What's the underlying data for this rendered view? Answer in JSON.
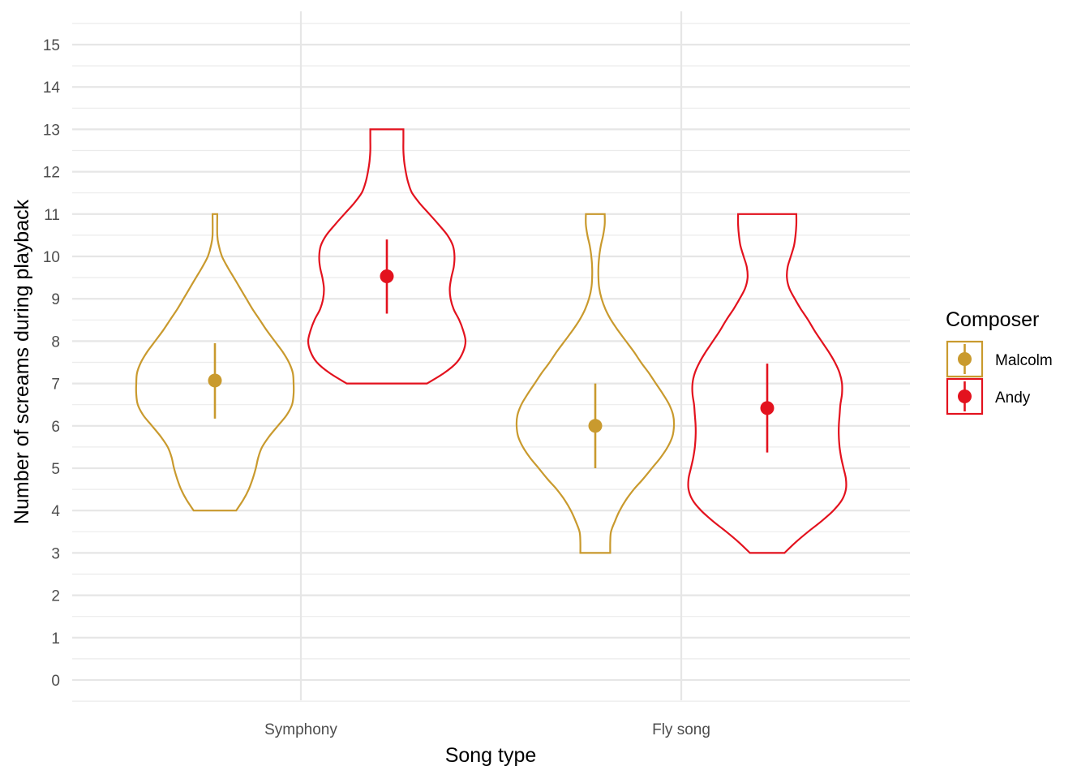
{
  "chart_data": {
    "type": "violin",
    "xlabel": "Song type",
    "ylabel": "Number of screams during playback",
    "categories": [
      "Symphony",
      "Fly song"
    ],
    "ylim": [
      -0.5,
      15.5
    ],
    "yticks": [
      0,
      1,
      2,
      3,
      4,
      5,
      6,
      7,
      8,
      9,
      10,
      11,
      12,
      13,
      14,
      15
    ],
    "grid": true,
    "legend": {
      "title": "Composer",
      "position": "right"
    },
    "series": [
      {
        "name": "Malcolm",
        "color": "#C99A2E",
        "groups": [
          {
            "category": "Symphony",
            "min": 4,
            "max": 11,
            "mean": 7.07,
            "ci_low": 6.17,
            "ci_high": 7.95,
            "density": [
              [
                4,
                0.27
              ],
              [
                4.25,
                0.36
              ],
              [
                4.5,
                0.43
              ],
              [
                4.75,
                0.48
              ],
              [
                5,
                0.52
              ],
              [
                5.25,
                0.55
              ],
              [
                5.5,
                0.6
              ],
              [
                5.75,
                0.69
              ],
              [
                6,
                0.8
              ],
              [
                6.25,
                0.91
              ],
              [
                6.5,
                0.98
              ],
              [
                6.75,
                1.0
              ],
              [
                7,
                1.0
              ],
              [
                7.25,
                0.99
              ],
              [
                7.5,
                0.94
              ],
              [
                7.75,
                0.86
              ],
              [
                8,
                0.76
              ],
              [
                8.25,
                0.66
              ],
              [
                8.5,
                0.57
              ],
              [
                8.75,
                0.48
              ],
              [
                9,
                0.4
              ],
              [
                9.25,
                0.32
              ],
              [
                9.5,
                0.24
              ],
              [
                9.75,
                0.16
              ],
              [
                10,
                0.09
              ],
              [
                10.25,
                0.05
              ],
              [
                10.5,
                0.03
              ],
              [
                11,
                0.03
              ]
            ]
          },
          {
            "category": "Fly song",
            "min": 3,
            "max": 11,
            "mean": 6.0,
            "ci_low": 5.0,
            "ci_high": 7.0,
            "density": [
              [
                3,
                0.19
              ],
              [
                3.25,
                0.19
              ],
              [
                3.5,
                0.2
              ],
              [
                3.75,
                0.25
              ],
              [
                4,
                0.31
              ],
              [
                4.25,
                0.39
              ],
              [
                4.5,
                0.49
              ],
              [
                4.75,
                0.61
              ],
              [
                5,
                0.72
              ],
              [
                5.25,
                0.83
              ],
              [
                5.5,
                0.92
              ],
              [
                5.75,
                0.98
              ],
              [
                6,
                1.0
              ],
              [
                6.25,
                0.99
              ],
              [
                6.5,
                0.94
              ],
              [
                6.75,
                0.86
              ],
              [
                7,
                0.77
              ],
              [
                7.25,
                0.68
              ],
              [
                7.5,
                0.58
              ],
              [
                7.75,
                0.49
              ],
              [
                8,
                0.39
              ],
              [
                8.25,
                0.29
              ],
              [
                8.5,
                0.2
              ],
              [
                8.75,
                0.13
              ],
              [
                9,
                0.08
              ],
              [
                9.25,
                0.05
              ],
              [
                9.5,
                0.04
              ],
              [
                9.75,
                0.04
              ],
              [
                10,
                0.05
              ],
              [
                10.25,
                0.07
              ],
              [
                10.5,
                0.1
              ],
              [
                10.75,
                0.12
              ],
              [
                11,
                0.12
              ]
            ]
          }
        ]
      },
      {
        "name": "Andy",
        "color": "#E3121E",
        "groups": [
          {
            "category": "Symphony",
            "min": 7,
            "max": 13,
            "mean": 9.53,
            "ci_low": 8.65,
            "ci_high": 10.4,
            "density": [
              [
                7,
                0.51
              ],
              [
                7.25,
                0.73
              ],
              [
                7.5,
                0.89
              ],
              [
                7.75,
                0.97
              ],
              [
                8,
                1.0
              ],
              [
                8.25,
                0.97
              ],
              [
                8.5,
                0.92
              ],
              [
                8.75,
                0.85
              ],
              [
                9,
                0.81
              ],
              [
                9.25,
                0.8
              ],
              [
                9.5,
                0.82
              ],
              [
                9.75,
                0.85
              ],
              [
                10,
                0.86
              ],
              [
                10.25,
                0.84
              ],
              [
                10.5,
                0.77
              ],
              [
                10.75,
                0.66
              ],
              [
                11,
                0.54
              ],
              [
                11.25,
                0.42
              ],
              [
                11.5,
                0.32
              ],
              [
                11.75,
                0.27
              ],
              [
                12,
                0.24
              ],
              [
                12.25,
                0.22
              ],
              [
                12.5,
                0.21
              ],
              [
                12.75,
                0.21
              ],
              [
                13,
                0.21
              ]
            ]
          },
          {
            "category": "Fly song",
            "min": 3,
            "max": 11,
            "mean": 6.42,
            "ci_low": 5.37,
            "ci_high": 7.47,
            "density": [
              [
                3,
                0.22
              ],
              [
                3.25,
                0.36
              ],
              [
                3.5,
                0.52
              ],
              [
                3.75,
                0.69
              ],
              [
                4,
                0.84
              ],
              [
                4.25,
                0.95
              ],
              [
                4.5,
                1.0
              ],
              [
                4.75,
                1.0
              ],
              [
                5,
                0.97
              ],
              [
                5.25,
                0.94
              ],
              [
                5.5,
                0.92
              ],
              [
                5.75,
                0.91
              ],
              [
                6,
                0.91
              ],
              [
                6.25,
                0.92
              ],
              [
                6.5,
                0.93
              ],
              [
                6.75,
                0.95
              ],
              [
                7,
                0.95
              ],
              [
                7.25,
                0.92
              ],
              [
                7.5,
                0.86
              ],
              [
                7.75,
                0.78
              ],
              [
                8,
                0.69
              ],
              [
                8.25,
                0.6
              ],
              [
                8.5,
                0.52
              ],
              [
                8.75,
                0.43
              ],
              [
                9,
                0.35
              ],
              [
                9.25,
                0.28
              ],
              [
                9.5,
                0.25
              ],
              [
                9.75,
                0.26
              ],
              [
                10,
                0.3
              ],
              [
                10.25,
                0.34
              ],
              [
                10.5,
                0.36
              ],
              [
                10.75,
                0.37
              ],
              [
                11,
                0.37
              ]
            ]
          }
        ]
      }
    ]
  }
}
